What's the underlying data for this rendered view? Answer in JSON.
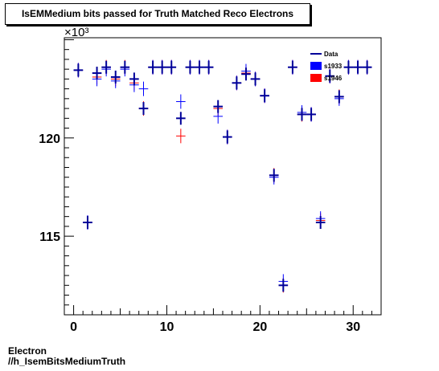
{
  "chart_data": {
    "type": "scatter",
    "title": "IsEMMedium bits passed for Truth Matched Reco Electrons",
    "y_multiplier": "×10³",
    "xlim": [
      -1,
      33
    ],
    "ylim": [
      111.0,
      125.1
    ],
    "x_ticks": [
      0,
      10,
      20,
      30
    ],
    "y_ticks": [
      115,
      120
    ],
    "legend_position": "top-right",
    "series": [
      {
        "name": "Data",
        "color": "#000099",
        "x": [
          0.5,
          1.5,
          2.5,
          3.5,
          4.5,
          5.5,
          6.5,
          7.5,
          8.5,
          9.5,
          10.5,
          11.5,
          12.5,
          13.5,
          14.5,
          15.5,
          16.5,
          17.5,
          18.5,
          19.5,
          20.5,
          21.5,
          22.5,
          23.5,
          24.5,
          25.5,
          26.5,
          27.5,
          28.5,
          29.5,
          30.5,
          31.5
        ],
        "y": [
          123.45,
          115.7,
          123.3,
          123.6,
          123.1,
          123.6,
          123.0,
          121.5,
          123.6,
          123.6,
          123.6,
          121.0,
          123.6,
          123.6,
          123.6,
          121.6,
          120.05,
          122.8,
          123.25,
          123.0,
          122.15,
          118.1,
          112.5,
          123.6,
          121.2,
          121.2,
          115.7,
          123.15,
          122.1,
          123.6,
          123.6,
          123.6
        ]
      },
      {
        "name": "s1933",
        "color": "#0000ff",
        "x": [
          0.5,
          1.5,
          2.5,
          3.5,
          4.5,
          5.5,
          6.5,
          7.5,
          8.5,
          9.5,
          10.5,
          11.5,
          12.5,
          13.5,
          14.5,
          15.5,
          16.5,
          17.5,
          18.5,
          19.5,
          20.5,
          21.5,
          22.5,
          23.5,
          24.5,
          25.5,
          26.5,
          27.5,
          28.5,
          29.5,
          30.5,
          31.5
        ],
        "y": [
          123.45,
          115.7,
          123.0,
          123.5,
          122.9,
          123.5,
          122.7,
          122.5,
          123.6,
          123.6,
          123.6,
          121.85,
          123.6,
          123.6,
          123.6,
          121.1,
          120.05,
          122.8,
          123.4,
          123.0,
          122.15,
          118.0,
          112.7,
          123.6,
          121.3,
          121.2,
          115.9,
          123.15,
          122.0,
          123.6,
          123.6,
          123.6
        ]
      },
      {
        "name": "s1946",
        "color": "#ff0000",
        "x": [
          0.5,
          1.5,
          2.5,
          3.5,
          4.5,
          5.5,
          6.5,
          7.5,
          8.5,
          9.5,
          10.5,
          11.5,
          12.5,
          13.5,
          14.5,
          15.5,
          16.5,
          17.5,
          18.5,
          19.5,
          20.5,
          21.5,
          22.5,
          23.5,
          24.5,
          25.5,
          26.5,
          27.5,
          28.5,
          29.5,
          30.5,
          31.5
        ],
        "y": [
          123.45,
          115.7,
          123.1,
          123.6,
          123.0,
          123.6,
          122.8,
          121.5,
          123.6,
          123.6,
          123.6,
          120.1,
          123.6,
          123.6,
          123.6,
          121.5,
          120.05,
          122.8,
          123.3,
          123.0,
          122.15,
          118.1,
          112.5,
          123.6,
          121.2,
          121.2,
          115.8,
          123.15,
          122.1,
          123.6,
          123.6,
          123.6
        ]
      }
    ]
  },
  "footer": {
    "line1": "Electron",
    "line2": "//h_IsemBitsMediumTruth"
  }
}
